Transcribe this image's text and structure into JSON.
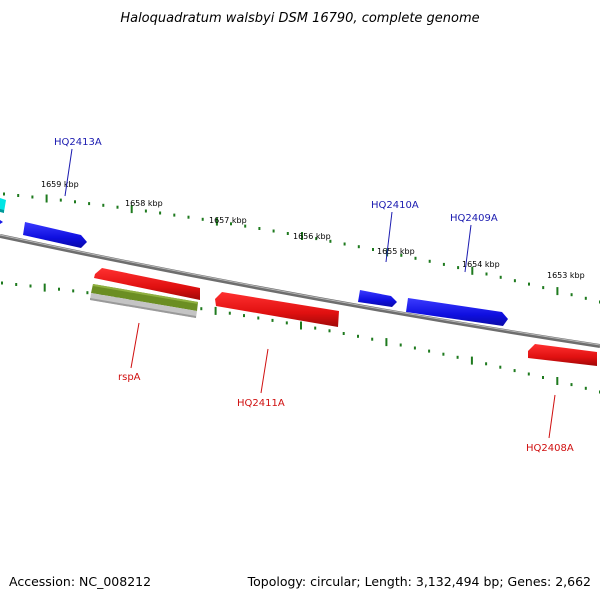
{
  "title": "Haloquadratum walsbyi DSM 16790, complete genome",
  "footer": {
    "accession": "Accession: NC_008212",
    "summary": "Topology: circular; Length: 3,132,494 bp; Genes: 2,662"
  },
  "kbp_labels": [
    "1659 kbp",
    "1658 kbp",
    "1657 kbp",
    "1656 kbp",
    "1655 kbp",
    "1654 kbp",
    "1653 kbp"
  ],
  "gene_labels": {
    "hq2413a": "HQ2413A",
    "hq2410a": "HQ2410A",
    "hq2409a": "HQ2409A",
    "rspa": "rspA",
    "hq2411a": "HQ2411A",
    "hq2408a": "HQ2408A"
  },
  "colors": {
    "forward_gene": "#1a1ae6",
    "reverse_gene": "#e61a1a",
    "cyan_feature": "#00e5e5",
    "olive_feature": "#6b8e23",
    "gray_feature": "#bdbdbd",
    "backbone": "#808080",
    "tick": "#1e7a1e",
    "label_blue": "#1b1bb0",
    "label_red": "#d01010"
  }
}
